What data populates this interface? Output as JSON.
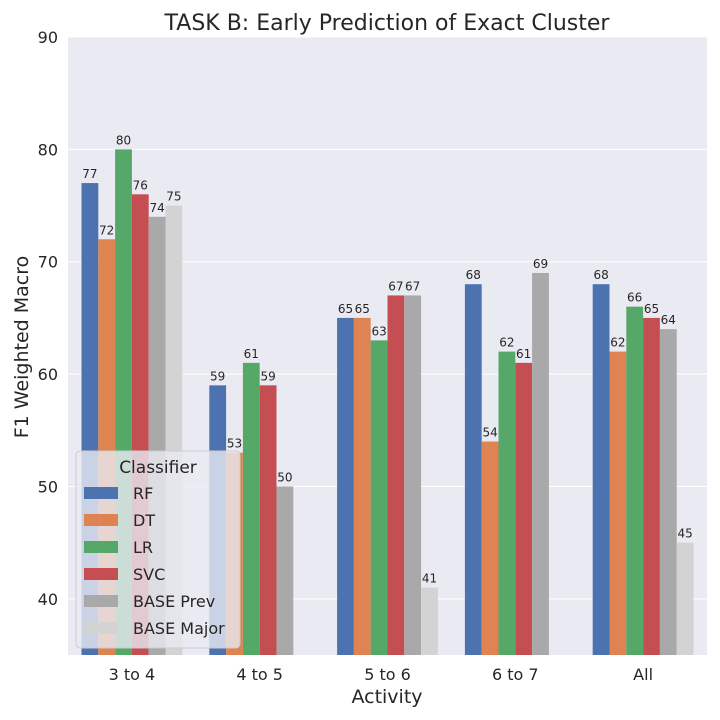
{
  "chart_data": {
    "type": "bar",
    "title": "TASK B: Early Prediction of Exact Cluster",
    "xlabel": "Activity",
    "ylabel": "F1 Weighted Macro",
    "categories": [
      "3 to 4",
      "4 to 5",
      "5 to 6",
      "6 to 7",
      "All"
    ],
    "ylim": [
      35,
      90
    ],
    "yticks": [
      40,
      50,
      60,
      70,
      80,
      90
    ],
    "grid": true,
    "legend_title": "Classifier",
    "legend_position": "lower-left",
    "series": [
      {
        "name": "RF",
        "color": "#4c72b0",
        "values": [
          77,
          59,
          65,
          68,
          68
        ]
      },
      {
        "name": "DT",
        "color": "#dd8452",
        "values": [
          72,
          53,
          65,
          54,
          62
        ]
      },
      {
        "name": "LR",
        "color": "#55a868",
        "values": [
          80,
          61,
          63,
          62,
          66
        ]
      },
      {
        "name": "SVC",
        "color": "#c44e52",
        "values": [
          76,
          59,
          67,
          61,
          65
        ]
      },
      {
        "name": "BASE Prev",
        "color": "#a9a9a9",
        "values": [
          74,
          50,
          67,
          69,
          64
        ]
      },
      {
        "name": "BASE Major",
        "color": "#d3d3d3",
        "values": [
          75,
          null,
          41,
          null,
          45
        ]
      }
    ]
  },
  "colors": {
    "plot_background": "#eaeaf2",
    "grid": "#ffffff"
  }
}
